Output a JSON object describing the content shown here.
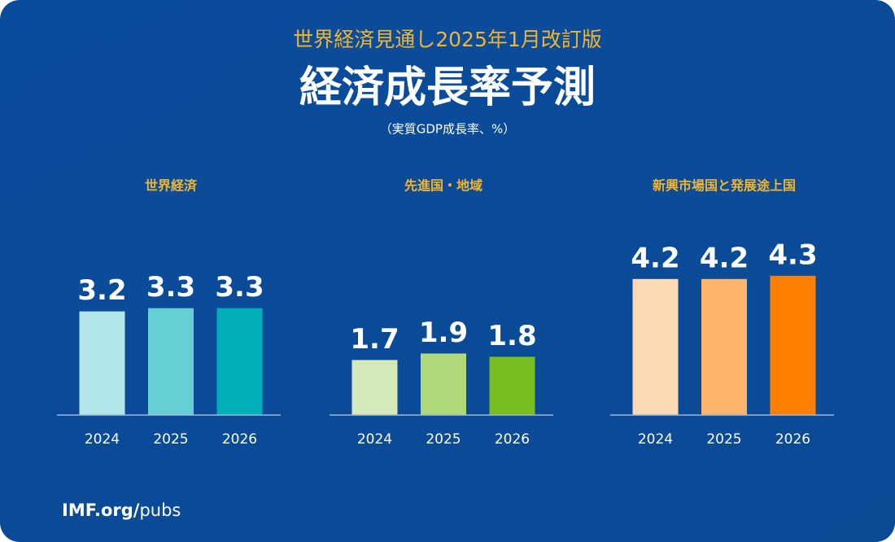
{
  "header": {
    "supertitle": "世界経済見通し2025年1月改訂版",
    "title": "経済成長率予測",
    "subtitle": "（実質GDP成長率、%）"
  },
  "chart_data": [
    {
      "type": "bar",
      "title": "世界経済",
      "categories": [
        "2024",
        "2025",
        "2026"
      ],
      "values": [
        3.2,
        3.3,
        3.3
      ],
      "colors": [
        "#b3e6ea",
        "#66cfd4",
        "#00aeb8"
      ]
    },
    {
      "type": "bar",
      "title": "先進国・地域",
      "categories": [
        "2024",
        "2025",
        "2026"
      ],
      "values": [
        1.7,
        1.9,
        1.8
      ],
      "colors": [
        "#d6e9b8",
        "#b0d97a",
        "#78be20"
      ]
    },
    {
      "type": "bar",
      "title": "新興市場国と発展途上国",
      "categories": [
        "2024",
        "2025",
        "2026"
      ],
      "values": [
        4.2,
        4.2,
        4.3
      ],
      "colors": [
        "#fdd9b5",
        "#fdb46b",
        "#ff7f00"
      ]
    }
  ],
  "footer": {
    "site": "IMF.org/",
    "path": "pubs"
  }
}
